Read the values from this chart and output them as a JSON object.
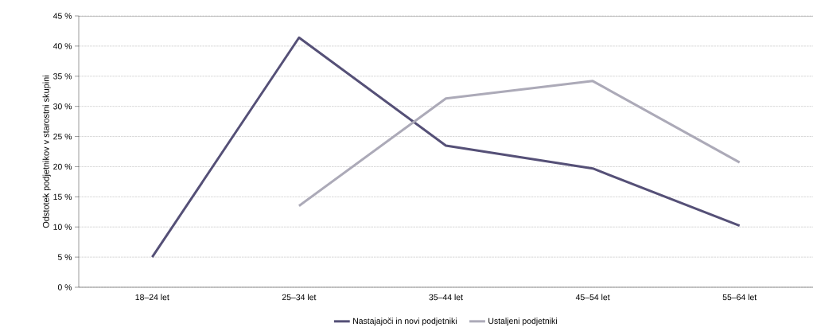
{
  "chart_data": {
    "type": "line",
    "ylabel": "Odstotek podjetnikov v starostni skupini",
    "categories": [
      "18–24 let",
      "25–34 let",
      "35–44 let",
      "45–54 let",
      "55–64 let"
    ],
    "series": [
      {
        "name": "Nastajajoči in novi podjetniki",
        "color": "#555077",
        "values": [
          5.0,
          41.4,
          23.5,
          19.7,
          10.2
        ]
      },
      {
        "name": "Ustaljeni podjetniki",
        "color": "#acaab8",
        "values": [
          null,
          13.5,
          31.3,
          34.2,
          20.7
        ]
      }
    ],
    "ylim": [
      0,
      45
    ],
    "yticks": [
      {
        "value": 0,
        "label": "0 %"
      },
      {
        "value": 5,
        "label": "5 %"
      },
      {
        "value": 10,
        "label": "10 %"
      },
      {
        "value": 15,
        "label": "15 %"
      },
      {
        "value": 20,
        "label": "20 %"
      },
      {
        "value": 25,
        "label": "25 %"
      },
      {
        "value": 30,
        "label": "30 %"
      },
      {
        "value": 35,
        "label": "35 %"
      },
      {
        "value": 40,
        "label": "40 %"
      },
      {
        "value": 45,
        "label": "45 %"
      }
    ],
    "grid": "y",
    "legend": "bottom",
    "marker": "none",
    "line_style": "solid"
  }
}
